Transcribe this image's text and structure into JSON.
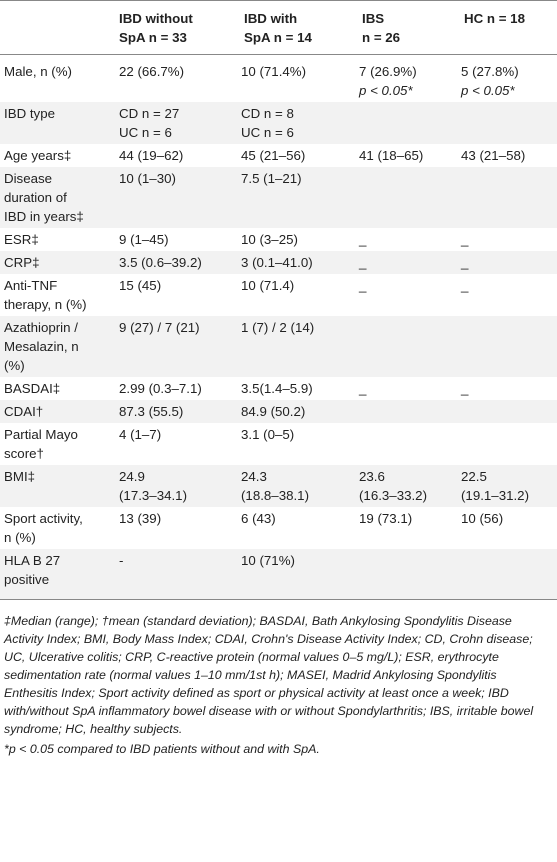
{
  "header": [
    "",
    "IBD without SpA n = 33",
    "IBD with SpA n = 14",
    "IBS n = 26",
    "HC n = 18"
  ],
  "header_lines": [
    [
      ""
    ],
    [
      "IBD without",
      "SpA n = 33"
    ],
    [
      "IBD with",
      "SpA n = 14"
    ],
    [
      "IBS",
      "n = 26"
    ],
    [
      "HC n = 18"
    ]
  ],
  "rows": [
    {
      "label": [
        "Male, n (%)"
      ],
      "cells": [
        [
          "22 (66.7%)"
        ],
        [
          "10 (71.4%)"
        ],
        [
          "7 (26.9%)",
          "p < 0.05*"
        ],
        [
          "5 (27.8%)",
          "p < 0.05*"
        ]
      ]
    },
    {
      "label": [
        "IBD type"
      ],
      "cells": [
        [
          "CD n = 27",
          "UC n = 6"
        ],
        [
          "CD n = 8",
          "UC n = 6"
        ],
        [
          ""
        ],
        [
          ""
        ]
      ]
    },
    {
      "label": [
        "Age years‡"
      ],
      "cells": [
        [
          "44 (19–62)"
        ],
        [
          "45 (21–56)"
        ],
        [
          "41 (18–65)"
        ],
        [
          "43 (21–58)"
        ]
      ]
    },
    {
      "label": [
        "Disease",
        "duration of",
        "IBD in years‡"
      ],
      "cells": [
        [
          "10 (1–30)"
        ],
        [
          "7.5 (1–21)"
        ],
        [
          ""
        ],
        [
          ""
        ]
      ]
    },
    {
      "label": [
        "ESR‡"
      ],
      "cells": [
        [
          "9 (1–45)"
        ],
        [
          "10 (3–25)"
        ],
        [
          "_"
        ],
        [
          "_"
        ]
      ]
    },
    {
      "label": [
        "CRP‡"
      ],
      "cells": [
        [
          "3.5 (0.6–39.2)"
        ],
        [
          "3 (0.1–41.0)"
        ],
        [
          "_"
        ],
        [
          "_"
        ]
      ]
    },
    {
      "label": [
        "Anti-TNF",
        "therapy, n (%)"
      ],
      "cells": [
        [
          "15 (45)"
        ],
        [
          "10 (71.4)"
        ],
        [
          "_"
        ],
        [
          "_"
        ]
      ]
    },
    {
      "label": [
        "Azathioprin /",
        "Mesalazin, n",
        "(%)"
      ],
      "cells": [
        [
          "9 (27) / 7 (21)"
        ],
        [
          "1 (7) / 2 (14)"
        ],
        [
          ""
        ],
        [
          ""
        ]
      ]
    },
    {
      "label": [
        "BASDAI‡"
      ],
      "cells": [
        [
          "2.99 (0.3–7.1)"
        ],
        [
          "3.5(1.4–5.9)"
        ],
        [
          "_"
        ],
        [
          "_"
        ]
      ]
    },
    {
      "label": [
        "CDAI†"
      ],
      "cells": [
        [
          "87.3 (55.5)"
        ],
        [
          "84.9 (50.2)"
        ],
        [
          ""
        ],
        [
          ""
        ]
      ]
    },
    {
      "label": [
        "Partial Mayo",
        "score†"
      ],
      "cells": [
        [
          "4 (1–7)"
        ],
        [
          "3.1 (0–5)"
        ],
        [
          ""
        ],
        [
          ""
        ]
      ]
    },
    {
      "label": [
        "BMI‡"
      ],
      "cells": [
        [
          "24.9",
          "(17.3–34.1)"
        ],
        [
          "24.3",
          "(18.8–38.1)"
        ],
        [
          "23.6",
          "(16.3–33.2)"
        ],
        [
          "22.5",
          "(19.1–31.2)"
        ]
      ]
    },
    {
      "label": [
        "Sport activity,",
        "n (%)"
      ],
      "cells": [
        [
          "13 (39)"
        ],
        [
          "6 (43)"
        ],
        [
          "19 (73.1)"
        ],
        [
          "10 (56)"
        ]
      ]
    },
    {
      "label": [
        "HLA B 27",
        "positive"
      ],
      "cells": [
        [
          "-"
        ],
        [
          "10 (71%)"
        ],
        [
          ""
        ],
        [
          ""
        ]
      ]
    }
  ],
  "footnote_main": "‡Median (range); †mean (standard deviation); BASDAI, Bath Ankylosing Spondylitis Disease Activity Index; BMI, Body Mass Index; CDAI, Crohn's Disease Activity Index; CD, Crohn disease; UC, Ulcerative colitis; CRP, C-reactive protein (normal values 0–5 mg/L); ESR, erythrocyte sedimentation rate (normal values 1–10 mm/1st h); MASEI, Madrid Ankylosing Spondylitis Enthesitis Index; Sport activity defined as sport or physical activity at least once a week; IBD with/without SpA inflammatory bowel disease with or without Spondylarthritis; IBS, irritable bowel syndrome; HC, healthy subjects.",
  "footnote_star": "*p < 0.05 compared to IBD patients without and with SpA."
}
